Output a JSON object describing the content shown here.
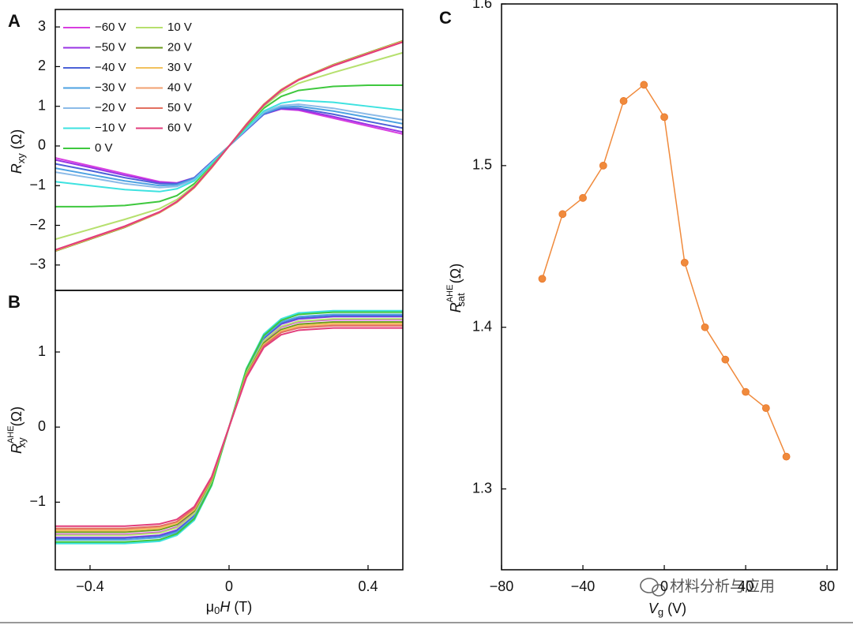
{
  "chart_data": [
    {
      "type": "line",
      "panel": "A",
      "xlim": [
        -0.5,
        0.5
      ],
      "ylim": [
        -3.64,
        3.44
      ],
      "yticks": [
        {
          "value": -3,
          "label": "−3"
        },
        {
          "value": -2,
          "label": "−2"
        },
        {
          "value": -1,
          "label": "−1"
        },
        0,
        1,
        2,
        3
      ],
      "ylabel": {
        "symbol": "R",
        "sub": "xy",
        "unit": "(Ω)"
      },
      "legend": true,
      "x": [
        -0.5,
        -0.4,
        -0.3,
        -0.2,
        -0.15,
        -0.1,
        -0.05,
        0,
        0.05,
        0.1,
        0.15,
        0.2,
        0.3,
        0.4,
        0.5
      ],
      "series": [
        {
          "name": "−60 V",
          "color": "#d83ee0",
          "values": [
            -0.3,
            -0.5,
            -0.7,
            -0.9,
            -0.93,
            -0.8,
            -0.4,
            0,
            0.4,
            0.8,
            0.93,
            0.9,
            0.7,
            0.5,
            0.3
          ]
        },
        {
          "name": "−50 V",
          "color": "#9a34e4",
          "values": [
            -0.35,
            -0.54,
            -0.74,
            -0.92,
            -0.94,
            -0.8,
            -0.4,
            0,
            0.4,
            0.8,
            0.94,
            0.92,
            0.74,
            0.54,
            0.35
          ]
        },
        {
          "name": "−40 V",
          "color": "#4c62d8",
          "values": [
            -0.45,
            -0.62,
            -0.8,
            -0.95,
            -0.95,
            -0.8,
            -0.4,
            0,
            0.4,
            0.8,
            0.95,
            0.95,
            0.8,
            0.62,
            0.45
          ]
        },
        {
          "name": "−30 V",
          "color": "#4ea2e2",
          "values": [
            -0.56,
            -0.72,
            -0.88,
            -1.0,
            -0.98,
            -0.82,
            -0.42,
            0,
            0.42,
            0.82,
            0.98,
            1.0,
            0.88,
            0.72,
            0.56
          ]
        },
        {
          "name": "−20 V",
          "color": "#8cbbe8",
          "values": [
            -0.66,
            -0.8,
            -0.95,
            -1.05,
            -1.02,
            -0.85,
            -0.43,
            0,
            0.43,
            0.85,
            1.02,
            1.05,
            0.95,
            0.8,
            0.66
          ]
        },
        {
          "name": "−10 V",
          "color": "#3ee2e0",
          "values": [
            -0.9,
            -1.0,
            -1.1,
            -1.15,
            -1.08,
            -0.88,
            -0.45,
            0,
            0.45,
            0.88,
            1.08,
            1.15,
            1.1,
            1.0,
            0.9
          ]
        },
        {
          "name": "0 V",
          "color": "#3ec83e",
          "values": [
            -1.53,
            -1.53,
            -1.5,
            -1.4,
            -1.25,
            -0.95,
            -0.5,
            0,
            0.5,
            0.95,
            1.25,
            1.4,
            1.5,
            1.53,
            1.53
          ]
        },
        {
          "name": "10 V",
          "color": "#b6e06e",
          "values": [
            -2.35,
            -2.1,
            -1.85,
            -1.58,
            -1.35,
            -1.0,
            -0.52,
            0,
            0.52,
            1.0,
            1.35,
            1.58,
            1.85,
            2.1,
            2.35
          ]
        },
        {
          "name": "20 V",
          "color": "#6a9a1e",
          "values": [
            -2.65,
            -2.35,
            -2.05,
            -1.68,
            -1.42,
            -1.05,
            -0.55,
            0,
            0.55,
            1.05,
            1.42,
            1.68,
            2.05,
            2.35,
            2.65
          ]
        },
        {
          "name": "30 V",
          "color": "#f2c25e",
          "values": [
            -2.64,
            -2.34,
            -2.04,
            -1.68,
            -1.42,
            -1.05,
            -0.55,
            0,
            0.55,
            1.05,
            1.42,
            1.68,
            2.04,
            2.34,
            2.64
          ]
        },
        {
          "name": "40 V",
          "color": "#f2a070",
          "values": [
            -2.63,
            -2.33,
            -2.03,
            -1.67,
            -1.41,
            -1.04,
            -0.54,
            0,
            0.54,
            1.04,
            1.41,
            1.67,
            2.03,
            2.33,
            2.63
          ]
        },
        {
          "name": "50 V",
          "color": "#e27060",
          "values": [
            -2.62,
            -2.33,
            -2.03,
            -1.67,
            -1.41,
            -1.04,
            -0.54,
            0,
            0.54,
            1.04,
            1.41,
            1.67,
            2.03,
            2.33,
            2.62
          ]
        },
        {
          "name": "60 V",
          "color": "#e23e7c",
          "values": [
            -2.62,
            -2.32,
            -2.02,
            -1.66,
            -1.4,
            -1.03,
            -0.53,
            0,
            0.53,
            1.03,
            1.4,
            1.66,
            2.02,
            2.32,
            2.62
          ]
        }
      ]
    },
    {
      "type": "line",
      "panel": "B",
      "xlim": [
        -0.5,
        0.5
      ],
      "ylim": [
        -1.9,
        1.82
      ],
      "xticks": [
        {
          "value": -0.4,
          "label": "−0.4"
        },
        0,
        0.4
      ],
      "yticks": [
        {
          "value": -1,
          "label": "−1"
        },
        0,
        1
      ],
      "xlabel": {
        "symbol": "μ",
        "sub": "0",
        "var": "H",
        "unit": "(T)"
      },
      "ylabel": {
        "symbol": "R",
        "sup": "AHE",
        "sub": "xy",
        "unit": "(Ω)"
      },
      "x": [
        -0.5,
        -0.4,
        -0.3,
        -0.2,
        -0.15,
        -0.1,
        -0.05,
        0,
        0.05,
        0.1,
        0.15,
        0.2,
        0.3,
        0.4,
        0.5
      ],
      "series": [
        {
          "color": "#d83ee0",
          "values": [
            -1.43,
            -1.43,
            -1.43,
            -1.4,
            -1.33,
            -1.14,
            -0.72,
            0,
            0.72,
            1.14,
            1.33,
            1.4,
            1.43,
            1.43,
            1.43
          ]
        },
        {
          "color": "#9a34e4",
          "values": [
            -1.47,
            -1.47,
            -1.47,
            -1.44,
            -1.37,
            -1.18,
            -0.74,
            0,
            0.74,
            1.18,
            1.37,
            1.44,
            1.47,
            1.47,
            1.47
          ]
        },
        {
          "color": "#4c62d8",
          "values": [
            -1.48,
            -1.48,
            -1.48,
            -1.45,
            -1.38,
            -1.18,
            -0.74,
            0,
            0.74,
            1.18,
            1.38,
            1.45,
            1.48,
            1.48,
            1.48
          ]
        },
        {
          "color": "#4ea2e2",
          "values": [
            -1.5,
            -1.5,
            -1.5,
            -1.47,
            -1.4,
            -1.2,
            -0.75,
            0,
            0.75,
            1.2,
            1.4,
            1.47,
            1.5,
            1.5,
            1.5
          ]
        },
        {
          "color": "#8cbbe8",
          "values": [
            -1.54,
            -1.54,
            -1.54,
            -1.51,
            -1.43,
            -1.23,
            -0.77,
            0,
            0.77,
            1.23,
            1.43,
            1.51,
            1.54,
            1.54,
            1.54
          ]
        },
        {
          "color": "#3ee2e0",
          "values": [
            -1.55,
            -1.55,
            -1.55,
            -1.52,
            -1.44,
            -1.24,
            -0.78,
            0,
            0.78,
            1.24,
            1.44,
            1.52,
            1.55,
            1.55,
            1.55
          ]
        },
        {
          "color": "#3ec83e",
          "values": [
            -1.53,
            -1.53,
            -1.53,
            -1.5,
            -1.42,
            -1.22,
            -0.77,
            0,
            0.77,
            1.22,
            1.42,
            1.5,
            1.53,
            1.53,
            1.53
          ]
        },
        {
          "color": "#b6e06e",
          "values": [
            -1.44,
            -1.44,
            -1.44,
            -1.41,
            -1.34,
            -1.15,
            -0.72,
            0,
            0.72,
            1.15,
            1.34,
            1.41,
            1.44,
            1.44,
            1.44
          ]
        },
        {
          "color": "#6a9a1e",
          "values": [
            -1.4,
            -1.4,
            -1.4,
            -1.37,
            -1.3,
            -1.12,
            -0.7,
            0,
            0.7,
            1.12,
            1.3,
            1.37,
            1.4,
            1.4,
            1.4
          ]
        },
        {
          "color": "#f2c25e",
          "values": [
            -1.38,
            -1.38,
            -1.38,
            -1.35,
            -1.28,
            -1.1,
            -0.69,
            0,
            0.69,
            1.1,
            1.28,
            1.35,
            1.38,
            1.38,
            1.38
          ]
        },
        {
          "color": "#f2a070",
          "values": [
            -1.36,
            -1.36,
            -1.36,
            -1.33,
            -1.26,
            -1.09,
            -0.68,
            0,
            0.68,
            1.09,
            1.26,
            1.33,
            1.36,
            1.36,
            1.36
          ]
        },
        {
          "color": "#e27060",
          "values": [
            -1.35,
            -1.35,
            -1.35,
            -1.32,
            -1.26,
            -1.08,
            -0.68,
            0,
            0.68,
            1.08,
            1.26,
            1.32,
            1.35,
            1.35,
            1.35
          ]
        },
        {
          "color": "#e23e7c",
          "values": [
            -1.32,
            -1.32,
            -1.32,
            -1.29,
            -1.23,
            -1.06,
            -0.66,
            0,
            0.66,
            1.06,
            1.23,
            1.29,
            1.32,
            1.32,
            1.32
          ]
        }
      ]
    },
    {
      "type": "line",
      "panel": "C",
      "markers": true,
      "xlim": [
        -80,
        85
      ],
      "ylim": [
        1.25,
        1.6
      ],
      "xticks": [
        {
          "value": -80,
          "label": "−80"
        },
        {
          "value": -40,
          "label": "−40"
        },
        0,
        40,
        80
      ],
      "yticks": [
        1.3,
        1.4,
        1.5,
        1.6
      ],
      "xlabel": {
        "symbol": "V",
        "sub": "g",
        "unit": "(V)"
      },
      "ylabel": {
        "symbol": "R",
        "sup": "AHE",
        "sub": "sat",
        "unit": "(Ω)"
      },
      "x": [
        -60,
        -50,
        -40,
        -30,
        -20,
        -10,
        0,
        10,
        20,
        30,
        40,
        50,
        60
      ],
      "series": [
        {
          "color": "#f08a3c",
          "values": [
            1.43,
            1.47,
            1.48,
            1.5,
            1.54,
            1.55,
            1.53,
            1.44,
            1.4,
            1.38,
            1.36,
            1.35,
            1.32
          ]
        }
      ]
    }
  ],
  "watermark": "材料分析与应用"
}
